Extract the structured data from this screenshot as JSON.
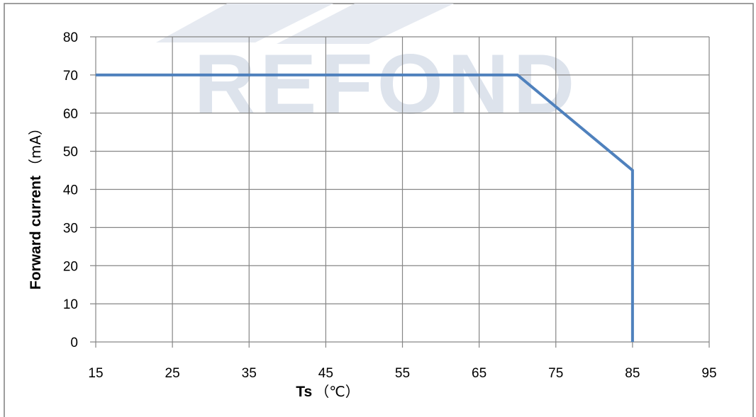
{
  "watermark": {
    "text": "REFOND",
    "color": "#dde3ec"
  },
  "chart_data": {
    "type": "line",
    "title": "",
    "xlabel": "Ts",
    "xlabel_unit": "（℃）",
    "ylabel": "Forward current",
    "ylabel_unit": "（mA）",
    "xlim": [
      15,
      95
    ],
    "ylim": [
      0,
      80
    ],
    "x_ticks": [
      15,
      25,
      35,
      45,
      55,
      65,
      75,
      85,
      95
    ],
    "y_ticks": [
      0,
      10,
      20,
      30,
      40,
      50,
      60,
      70,
      80
    ],
    "grid": true,
    "legend": "none",
    "series": [
      {
        "color": "#4f81bd",
        "points": [
          {
            "x": 15,
            "y": 70
          },
          {
            "x": 70,
            "y": 70
          },
          {
            "x": 85,
            "y": 45
          },
          {
            "x": 85,
            "y": 0
          }
        ]
      }
    ]
  }
}
